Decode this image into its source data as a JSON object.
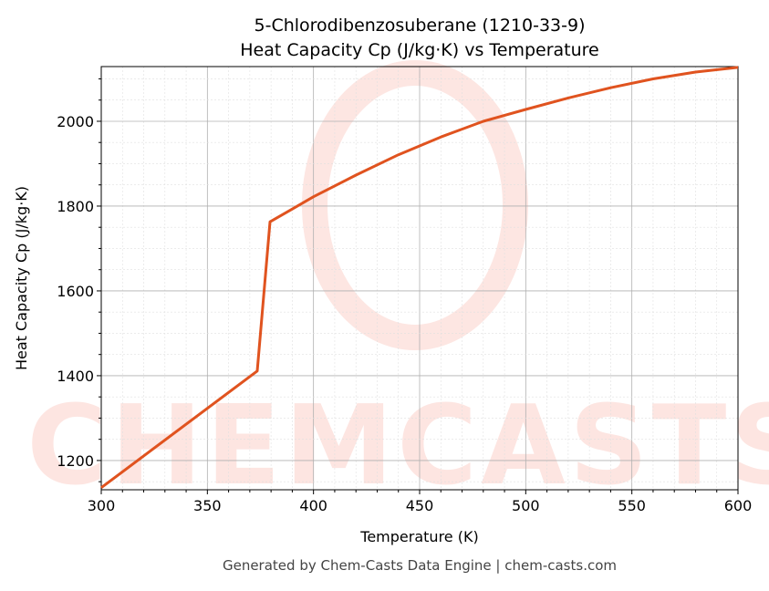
{
  "chart_data": {
    "type": "line",
    "title": "5-Chlorodibenzosuberane (1210-33-9)",
    "subtitle": "Heat Capacity Cp (J/kg·K) vs Temperature",
    "xlabel": "Temperature (K)",
    "ylabel": "Heat Capacity Cp (J/kg·K)",
    "xlim": [
      300,
      600
    ],
    "ylim": [
      1131,
      2129
    ],
    "xticks": [
      "300",
      "350",
      "400",
      "450",
      "500",
      "550",
      "600"
    ],
    "yticks": [
      "1200",
      "1400",
      "1600",
      "1800",
      "2000"
    ],
    "grid": true,
    "line_color": "#e0531f",
    "series": [
      {
        "x": [
          300,
          373.5,
          379.5,
          390,
          400,
          420,
          440,
          460,
          480,
          500,
          520,
          540,
          560,
          580,
          600
        ],
        "y": [
          1136,
          1411,
          1763,
          1793,
          1822,
          1873,
          1921,
          1963,
          2000,
          2028,
          2055,
          2079,
          2100,
          2116,
          2127
        ]
      }
    ]
  },
  "watermark": "CHEMCASTS",
  "footer": "Generated by Chem-Casts Data Engine | chem-casts.com"
}
